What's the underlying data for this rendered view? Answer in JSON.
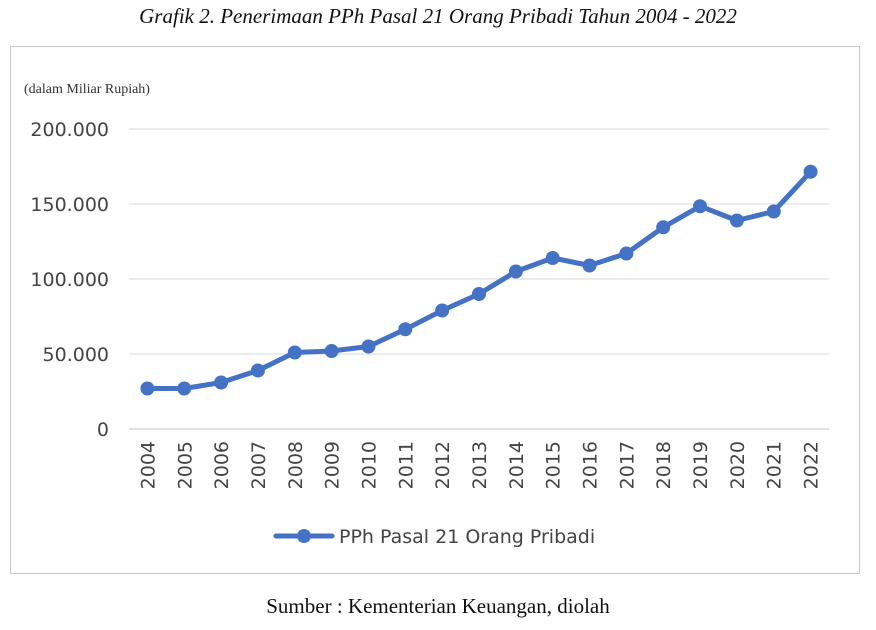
{
  "figure": {
    "title": "Grafik 2. Penerimaan PPh Pasal 21 Orang Pribadi Tahun 2004 - 2022",
    "source": "Sumber : Kementerian Keuangan, diolah"
  },
  "chart_data": {
    "type": "line",
    "unit_label": "(dalam Miliar Rupiah)",
    "categories": [
      "2004",
      "2005",
      "2006",
      "2007",
      "2008",
      "2009",
      "2010",
      "2011",
      "2012",
      "2013",
      "2014",
      "2015",
      "2016",
      "2017",
      "2018",
      "2019",
      "2020",
      "2021",
      "2022"
    ],
    "series": [
      {
        "name": "PPh Pasal 21 Orang Pribadi",
        "color": "#4472c4",
        "values": [
          27000,
          27000,
          31000,
          39000,
          51000,
          52000,
          55000,
          66500,
          79000,
          90000,
          105000,
          114000,
          109000,
          117000,
          134500,
          148500,
          139000,
          145000,
          171500
        ]
      }
    ],
    "ylim": [
      0,
      200000
    ],
    "yticks": [
      0,
      50000,
      100000,
      150000,
      200000
    ],
    "ytick_labels": [
      "0",
      "50.000",
      "100.000",
      "150.000",
      "200.000"
    ],
    "grid": true,
    "legend_position": "bottom"
  }
}
